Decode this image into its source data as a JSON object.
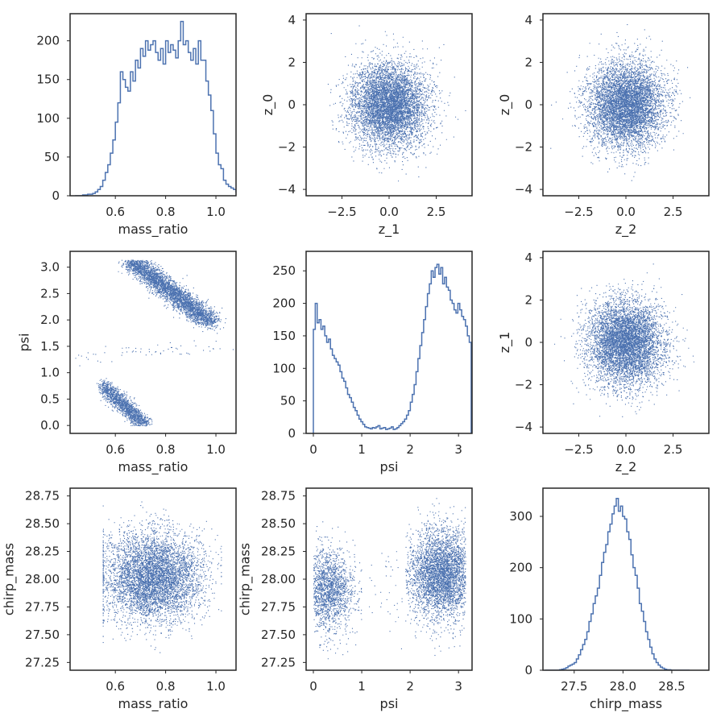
{
  "colors": {
    "series": "#4c72b0",
    "axes": "#262626",
    "background": "#ffffff"
  },
  "chart_data": [
    {
      "type": "histogram",
      "xlabel": "mass_ratio",
      "ylabel": "",
      "xlim": [
        0.42,
        1.08
      ],
      "ylim": [
        0,
        235
      ],
      "xticks": [
        0.6,
        0.8,
        1.0
      ],
      "xtick_labels": [
        "0.6",
        "0.8",
        "1.0"
      ],
      "yticks": [
        0,
        50,
        100,
        150,
        200
      ],
      "ytick_labels": [
        "0",
        "50",
        "100",
        "150",
        "200"
      ],
      "bin_start": 0.44,
      "bin_width": 0.01,
      "counts": [
        0,
        0,
        0,
        1,
        1,
        2,
        2,
        3,
        5,
        8,
        12,
        20,
        30,
        40,
        55,
        72,
        95,
        120,
        160,
        150,
        140,
        135,
        160,
        148,
        175,
        165,
        190,
        180,
        200,
        188,
        195,
        200,
        185,
        175,
        190,
        170,
        200,
        185,
        195,
        188,
        178,
        200,
        225,
        195,
        200,
        185,
        175,
        190,
        170,
        200,
        175,
        175,
        148,
        130,
        110,
        80,
        55,
        40,
        35,
        20,
        15,
        12,
        10,
        8,
        5,
        3,
        2,
        1,
        1,
        0
      ]
    },
    {
      "type": "scatter",
      "xlabel": "z_1",
      "ylabel": "z_0",
      "xlim": [
        -4.4,
        4.4
      ],
      "ylim": [
        -4.3,
        4.3
      ],
      "xticks": [
        -2.5,
        0,
        2.5
      ],
      "xtick_labels": [
        "−2.5",
        "0.0",
        "2.5"
      ],
      "yticks": [
        -4,
        -2,
        0,
        2,
        4
      ],
      "ytick_labels": [
        "−4",
        "−2",
        "0",
        "2",
        "4"
      ],
      "distribution": {
        "kind": "gaussian2d",
        "n": 6000,
        "mean": [
          0,
          0
        ],
        "std": [
          1,
          1
        ],
        "seed": 11
      }
    },
    {
      "type": "scatter",
      "xlabel": "z_2",
      "ylabel": "z_0",
      "xlim": [
        -4.4,
        4.4
      ],
      "ylim": [
        -4.3,
        4.3
      ],
      "xticks": [
        -2.5,
        0,
        2.5
      ],
      "xtick_labels": [
        "−2.5",
        "0.0",
        "2.5"
      ],
      "yticks": [
        -4,
        -2,
        0,
        2,
        4
      ],
      "ytick_labels": [
        "−4",
        "−2",
        "0",
        "2",
        "4"
      ],
      "distribution": {
        "kind": "gaussian2d",
        "n": 6000,
        "mean": [
          0,
          0
        ],
        "std": [
          1,
          1
        ],
        "seed": 23
      }
    },
    {
      "type": "scatter",
      "xlabel": "mass_ratio",
      "ylabel": "psi",
      "xlim": [
        0.42,
        1.08
      ],
      "ylim": [
        -0.15,
        3.3
      ],
      "xticks": [
        0.6,
        0.8,
        1.0
      ],
      "xtick_labels": [
        "0.6",
        "0.8",
        "1.0"
      ],
      "yticks": [
        0,
        0.5,
        1.0,
        1.5,
        2.0,
        2.5,
        3.0
      ],
      "ytick_labels": [
        "0.0",
        "0.5",
        "1.0",
        "1.5",
        "2.0",
        "2.5",
        "3.0"
      ],
      "distribution": {
        "kind": "bands",
        "seed": 37,
        "bands": [
          {
            "n": 3600,
            "x_range": [
              0.66,
              0.98
            ],
            "y_at_start": 3.14,
            "y_at_end": 1.95,
            "x_std": 0.025,
            "y_clip": [
              0,
              3.14
            ]
          },
          {
            "n": 1600,
            "x_range": [
              0.55,
              0.72
            ],
            "y_at_start": 0.75,
            "y_at_end": 0.0,
            "x_std": 0.014,
            "y_clip": [
              0,
              3.14
            ]
          },
          {
            "n": 60,
            "x_range": [
              0.45,
              1.0
            ],
            "y_at_start": 1.3,
            "y_at_end": 1.5,
            "x_std": 0.05,
            "y_clip": [
              0,
              3.14
            ]
          }
        ]
      }
    },
    {
      "type": "histogram",
      "xlabel": "psi",
      "ylabel": "",
      "xlim": [
        -0.15,
        3.28
      ],
      "ylim": [
        0,
        280
      ],
      "xticks": [
        0,
        1,
        2,
        3
      ],
      "xtick_labels": [
        "0",
        "1",
        "2",
        "3"
      ],
      "yticks": [
        0,
        50,
        100,
        150,
        200,
        250
      ],
      "ytick_labels": [
        "0",
        "50",
        "100",
        "150",
        "200",
        "250"
      ],
      "bin_start": 0.0,
      "bin_width": 0.0393,
      "counts": [
        160,
        200,
        170,
        175,
        160,
        165,
        150,
        140,
        145,
        130,
        120,
        115,
        110,
        105,
        95,
        85,
        80,
        70,
        60,
        55,
        48,
        40,
        35,
        28,
        22,
        18,
        14,
        10,
        9,
        8,
        7,
        9,
        8,
        10,
        12,
        7,
        8,
        9,
        6,
        7,
        8,
        10,
        6,
        7,
        9,
        12,
        15,
        18,
        22,
        28,
        35,
        48,
        60,
        75,
        95,
        115,
        135,
        155,
        175,
        195,
        215,
        230,
        250,
        240,
        255,
        260,
        245,
        255,
        230,
        240,
        225,
        220,
        205,
        200,
        190,
        185,
        200,
        190,
        180,
        175,
        165,
        150,
        140,
        0
      ]
    },
    {
      "type": "scatter",
      "xlabel": "z_2",
      "ylabel": "z_1",
      "xlim": [
        -4.4,
        4.4
      ],
      "ylim": [
        -4.3,
        4.3
      ],
      "xticks": [
        -2.5,
        0,
        2.5
      ],
      "xtick_labels": [
        "−2.5",
        "0.0",
        "2.5"
      ],
      "yticks": [
        -4,
        -2,
        0,
        2,
        4
      ],
      "ytick_labels": [
        "−4",
        "−2",
        "0",
        "2",
        "4"
      ],
      "distribution": {
        "kind": "gaussian2d",
        "n": 6000,
        "mean": [
          0,
          0
        ],
        "std": [
          1,
          1
        ],
        "seed": 53
      }
    },
    {
      "type": "scatter",
      "xlabel": "mass_ratio",
      "ylabel": "chirp_mass",
      "xlim": [
        0.42,
        1.08
      ],
      "ylim": [
        27.18,
        28.82
      ],
      "xticks": [
        0.6,
        0.8,
        1.0
      ],
      "xtick_labels": [
        "0.6",
        "0.8",
        "1.0"
      ],
      "yticks": [
        27.25,
        27.5,
        27.75,
        28.0,
        28.25,
        28.5,
        28.75
      ],
      "ytick_labels": [
        "27.25",
        "27.50",
        "27.75",
        "28.00",
        "28.25",
        "28.50",
        "28.75"
      ],
      "distribution": {
        "kind": "gaussian2d",
        "n": 5500,
        "mean": [
          0.75,
          28.02
        ],
        "std": [
          0.095,
          0.2
        ],
        "seed": 71,
        "x_clip": [
          0.55,
          1.02
        ]
      }
    },
    {
      "type": "scatter",
      "xlabel": "psi",
      "ylabel": "chirp_mass",
      "xlim": [
        -0.15,
        3.28
      ],
      "ylim": [
        27.18,
        28.82
      ],
      "xticks": [
        0,
        1,
        2,
        3
      ],
      "xtick_labels": [
        "0",
        "1",
        "2",
        "3"
      ],
      "yticks": [
        27.25,
        27.5,
        27.75,
        28.0,
        28.25,
        28.5,
        28.75
      ],
      "ytick_labels": [
        "27.25",
        "27.50",
        "27.75",
        "28.00",
        "28.25",
        "28.50",
        "28.75"
      ],
      "distribution": {
        "kind": "clusters",
        "seed": 89,
        "clusters": [
          {
            "n": 3800,
            "mean": [
              2.65,
              28.05
            ],
            "std": [
              0.32,
              0.2
            ],
            "x_clip": [
              1.9,
              3.14
            ]
          },
          {
            "n": 1700,
            "mean": [
              0.3,
              27.9
            ],
            "std": [
              0.22,
              0.19
            ],
            "x_clip": [
              0.0,
              1.0
            ]
          },
          {
            "n": 50,
            "mean": [
              1.45,
              27.95
            ],
            "std": [
              0.4,
              0.2
            ],
            "x_clip": [
              0.0,
              3.14
            ]
          }
        ]
      }
    },
    {
      "type": "histogram",
      "xlabel": "chirp_mass",
      "ylabel": "",
      "xlim": [
        27.18,
        28.88
      ],
      "ylim": [
        0,
        355
      ],
      "xticks": [
        27.5,
        28.0,
        28.5
      ],
      "xtick_labels": [
        "27.5",
        "28.0",
        "28.5"
      ],
      "yticks": [
        0,
        100,
        200,
        300
      ],
      "ytick_labels": [
        "0",
        "100",
        "200",
        "300"
      ],
      "bin_start": 27.2,
      "bin_width": 0.0215,
      "counts": [
        0,
        0,
        0,
        0,
        0,
        0,
        0,
        1,
        2,
        3,
        5,
        8,
        10,
        12,
        15,
        22,
        30,
        40,
        50,
        60,
        75,
        95,
        110,
        130,
        145,
        160,
        185,
        210,
        230,
        245,
        270,
        285,
        305,
        320,
        335,
        310,
        320,
        300,
        295,
        270,
        255,
        225,
        200,
        185,
        160,
        130,
        115,
        95,
        75,
        60,
        45,
        32,
        22,
        15,
        10,
        6,
        4,
        2,
        1,
        1,
        0,
        0,
        0,
        0,
        0,
        0,
        0,
        0,
        0
      ]
    }
  ]
}
